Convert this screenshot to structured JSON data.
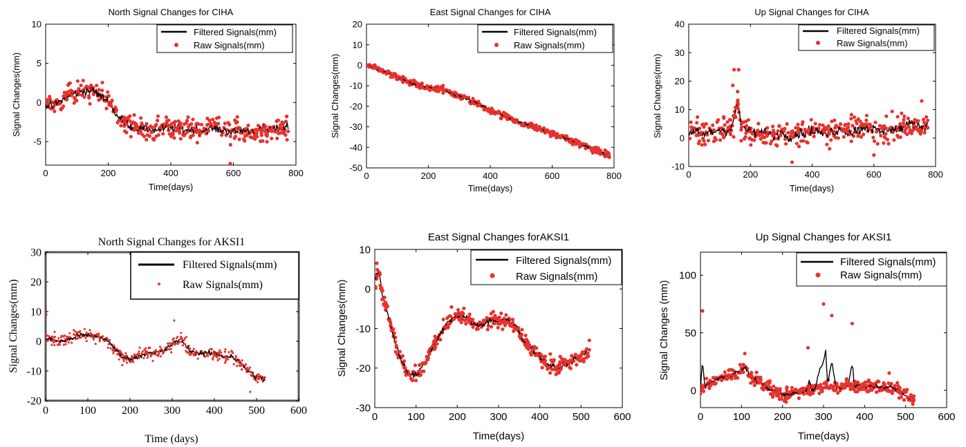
{
  "filtered_color": "#000000",
  "raw_color": "#e8322e",
  "chart_data": [
    {
      "type": "scatter",
      "title": "North Signal Changes for CIHA",
      "xlabel": "Time(days)",
      "ylabel": "Signal Changes(mm)",
      "xlim": [
        0,
        800
      ],
      "ylim": [
        -8,
        10
      ],
      "xticks": [
        0,
        200,
        400,
        600,
        800
      ],
      "yticks": [
        -5,
        0,
        5,
        10
      ],
      "legend_position": "top-right",
      "series": [
        {
          "name": "Filtered Signals(mm)",
          "kind": "line",
          "x": [
            0,
            25,
            50,
            75,
            100,
            125,
            150,
            175,
            200,
            225,
            250,
            275,
            300,
            325,
            350,
            375,
            400,
            425,
            450,
            475,
            500,
            525,
            550,
            575,
            600,
            625,
            650,
            675,
            700,
            725,
            750,
            775
          ],
          "y": [
            -0.3,
            -0.5,
            0.3,
            0.8,
            1.2,
            1.5,
            1.6,
            0.8,
            0.2,
            -1.5,
            -2.5,
            -3.0,
            -3.3,
            -3.4,
            -3.5,
            -3.4,
            -3.2,
            -3.3,
            -3.5,
            -3.4,
            -3.6,
            -3.3,
            -3.4,
            -3.6,
            -3.8,
            -3.5,
            -3.6,
            -3.7,
            -3.4,
            -3.6,
            -3.3,
            -3.0
          ]
        },
        {
          "name": "Raw Signals(mm)",
          "kind": "points",
          "x": [
            0,
            25,
            50,
            75,
            100,
            125,
            150,
            175,
            200,
            225,
            250,
            275,
            300,
            325,
            350,
            375,
            400,
            425,
            450,
            475,
            500,
            525,
            550,
            575,
            600,
            625,
            650,
            675,
            700,
            725,
            750,
            775
          ],
          "y": [
            -0.3,
            -0.5,
            0.3,
            0.8,
            1.2,
            1.5,
            1.6,
            0.8,
            0.2,
            -1.5,
            -2.5,
            -3.0,
            -3.3,
            -3.4,
            -3.5,
            -3.4,
            -3.2,
            -3.3,
            -3.5,
            -3.4,
            -3.6,
            -3.3,
            -3.4,
            -3.6,
            -3.8,
            -3.5,
            -3.6,
            -3.7,
            -3.4,
            -3.6,
            -3.3,
            -3.0
          ],
          "spread": 1.1,
          "outliers": [
            [
              590,
              -7.8
            ],
            [
              120,
              2.8
            ],
            [
              770,
              -1.8
            ]
          ]
        }
      ]
    },
    {
      "type": "scatter",
      "title": "East Signal Changes for CIHA",
      "xlabel": "Time(days)",
      "ylabel": "Signal Changes(mm)",
      "xlim": [
        0,
        800
      ],
      "ylim": [
        -50,
        20
      ],
      "xticks": [
        0,
        200,
        400,
        600,
        800
      ],
      "yticks": [
        -50,
        -40,
        -30,
        -20,
        -10,
        0,
        10,
        20
      ],
      "legend_position": "top-right",
      "series": [
        {
          "name": "Filtered Signals(mm)",
          "kind": "line",
          "x": [
            0,
            50,
            100,
            150,
            200,
            250,
            300,
            350,
            400,
            450,
            500,
            550,
            600,
            650,
            700,
            750,
            785
          ],
          "y": [
            0,
            -2.5,
            -6,
            -9,
            -10.5,
            -12,
            -15,
            -18,
            -22,
            -25,
            -28,
            -30.5,
            -33,
            -36,
            -39,
            -42,
            -44
          ]
        },
        {
          "name": "Raw Signals(mm)",
          "kind": "points",
          "x": [
            0,
            50,
            100,
            150,
            200,
            250,
            300,
            350,
            400,
            450,
            500,
            550,
            600,
            650,
            700,
            750,
            785
          ],
          "y": [
            0,
            -2.5,
            -6,
            -9,
            -10.5,
            -12,
            -15,
            -18,
            -22,
            -25,
            -28,
            -30.5,
            -33,
            -36,
            -39,
            -42,
            -44
          ],
          "spread": 1.3,
          "outliers": []
        }
      ]
    },
    {
      "type": "scatter",
      "title": "Up Signal Changes for CIHA",
      "xlabel": "Time(days)",
      "ylabel": "Signal Changes(mm)",
      "xlim": [
        0,
        800
      ],
      "ylim": [
        -10,
        40
      ],
      "xticks": [
        0,
        200,
        400,
        600,
        800
      ],
      "yticks": [
        -10,
        0,
        10,
        20,
        30,
        40
      ],
      "legend_position": "top-right",
      "series": [
        {
          "name": "Filtered Signals(mm)",
          "kind": "line",
          "x": [
            0,
            25,
            50,
            75,
            100,
            125,
            140,
            150,
            160,
            170,
            200,
            225,
            250,
            275,
            300,
            325,
            350,
            375,
            400,
            425,
            450,
            475,
            500,
            525,
            550,
            575,
            600,
            625,
            650,
            675,
            700,
            725,
            750,
            775
          ],
          "y": [
            1,
            2,
            1.5,
            2,
            3,
            2.5,
            4,
            9,
            12,
            4,
            2,
            1.5,
            2,
            1,
            2,
            0.5,
            1.5,
            2,
            3,
            2,
            1.5,
            2.5,
            3,
            2,
            3,
            4,
            3,
            2,
            3.5,
            3,
            4,
            5,
            4,
            5
          ]
        },
        {
          "name": "Raw Signals(mm)",
          "kind": "points",
          "x": [
            0,
            25,
            50,
            75,
            100,
            125,
            140,
            150,
            160,
            170,
            200,
            225,
            250,
            275,
            300,
            325,
            350,
            375,
            400,
            425,
            450,
            475,
            500,
            525,
            550,
            575,
            600,
            625,
            650,
            675,
            700,
            725,
            750,
            775
          ],
          "y": [
            1,
            2,
            1.5,
            2,
            3,
            2.5,
            4,
            9,
            12,
            4,
            2,
            1.5,
            2,
            1,
            2,
            0.5,
            1.5,
            2,
            3,
            2,
            1.5,
            2.5,
            3,
            2,
            3,
            4,
            3,
            2,
            3.5,
            3,
            4,
            5,
            4,
            5
          ],
          "spread": 3.5,
          "outliers": [
            [
              143,
              18.5
            ],
            [
              147,
              24
            ],
            [
              162,
              24
            ],
            [
              335,
              -8.5
            ],
            [
              755,
              13
            ],
            [
              600,
              -6
            ]
          ]
        }
      ]
    },
    {
      "type": "scatter",
      "title": "North Signal Changes for AKSI1",
      "xlabel": "Time (days)",
      "ylabel": "Signal Changes(mm)",
      "xlim": [
        0,
        600
      ],
      "ylim": [
        -20,
        30
      ],
      "xticks": [
        0,
        100,
        200,
        300,
        400,
        500,
        600
      ],
      "yticks": [
        -20,
        -10,
        0,
        10,
        20,
        30
      ],
      "legend_position": "top-right",
      "series": [
        {
          "name": "Filtered Signals(mm)",
          "kind": "line",
          "x": [
            0,
            20,
            40,
            60,
            80,
            100,
            120,
            140,
            160,
            180,
            200,
            220,
            240,
            260,
            280,
            300,
            320,
            340,
            360,
            380,
            400,
            420,
            440,
            460,
            480,
            500,
            520
          ],
          "y": [
            1,
            0.5,
            0,
            1,
            2,
            2,
            1.5,
            1,
            -2,
            -5,
            -6,
            -5,
            -4,
            -4,
            -3,
            -1,
            1,
            -3,
            -4,
            -4,
            -4,
            -5,
            -5,
            -7,
            -10,
            -12,
            -13
          ]
        },
        {
          "name": "Raw Signals(mm)",
          "kind": "points",
          "x": [
            0,
            20,
            40,
            60,
            80,
            100,
            120,
            140,
            160,
            180,
            200,
            220,
            240,
            260,
            280,
            300,
            320,
            340,
            360,
            380,
            400,
            420,
            440,
            460,
            480,
            500,
            520
          ],
          "y": [
            1,
            0.5,
            0,
            1,
            2,
            2,
            1.5,
            1,
            -2,
            -5,
            -6,
            -5,
            -4,
            -4,
            -3,
            -1,
            1,
            -3,
            -4,
            -4,
            -4,
            -5,
            -5,
            -7,
            -10,
            -12,
            -13
          ],
          "spread": 1.6,
          "outliers": [
            [
              2,
              9
            ],
            [
              305,
              7
            ],
            [
              485,
              -17
            ]
          ]
        }
      ]
    },
    {
      "type": "scatter",
      "title": "East Signal Changes forAKSI1",
      "xlabel": "Time(days)",
      "ylabel": "Signal Changes(mm)",
      "xlim": [
        0,
        600
      ],
      "ylim": [
        -30,
        10
      ],
      "xticks": [
        0,
        100,
        200,
        300,
        400,
        500,
        600
      ],
      "yticks": [
        -30,
        -20,
        -10,
        0,
        10
      ],
      "legend_position": "top-right",
      "series": [
        {
          "name": "Filtered Signals(mm)",
          "kind": "line",
          "x": [
            0,
            10,
            20,
            40,
            60,
            80,
            100,
            120,
            140,
            160,
            180,
            200,
            220,
            240,
            260,
            280,
            300,
            320,
            340,
            360,
            380,
            400,
            420,
            440,
            460,
            480,
            500,
            520
          ],
          "y": [
            3,
            4,
            -2,
            -10,
            -17,
            -21,
            -22,
            -19,
            -15,
            -11,
            -8,
            -7,
            -7,
            -9,
            -9,
            -8,
            -8,
            -8,
            -9,
            -13,
            -15,
            -17,
            -19,
            -20,
            -19,
            -18,
            -17,
            -16
          ]
        },
        {
          "name": "Raw Signals(mm)",
          "kind": "points",
          "x": [
            0,
            10,
            20,
            40,
            60,
            80,
            100,
            120,
            140,
            160,
            180,
            200,
            220,
            240,
            260,
            280,
            300,
            320,
            340,
            360,
            380,
            400,
            420,
            440,
            460,
            480,
            500,
            520
          ],
          "y": [
            3,
            4,
            -2,
            -10,
            -17,
            -21,
            -22,
            -19,
            -15,
            -11,
            -8,
            -7,
            -7,
            -9,
            -9,
            -8,
            -8,
            -8,
            -9,
            -13,
            -15,
            -17,
            -19,
            -20,
            -19,
            -18,
            -17,
            -16
          ],
          "spread": 1.5,
          "outliers": [
            [
              5,
              6.5
            ],
            [
              2,
              0.5
            ],
            [
              520,
              -13
            ]
          ]
        }
      ]
    },
    {
      "type": "scatter",
      "title": "Up Signal Changes for AKSI1",
      "xlabel": "Time(days)",
      "ylabel": "Signal Changes (mm)",
      "xlim": [
        0,
        600
      ],
      "ylim": [
        -15,
        120
      ],
      "xticks": [
        0,
        100,
        200,
        300,
        400,
        500,
        600
      ],
      "yticks": [
        0,
        50,
        100
      ],
      "legend_position": "top-right",
      "series": [
        {
          "name": "Filtered Signals(mm)",
          "kind": "line",
          "x": [
            0,
            5,
            10,
            20,
            40,
            60,
            80,
            100,
            110,
            120,
            140,
            160,
            180,
            200,
            220,
            240,
            260,
            265,
            270,
            280,
            290,
            300,
            305,
            310,
            320,
            330,
            340,
            360,
            370,
            375,
            380,
            400,
            420,
            440,
            460,
            480,
            500,
            520
          ],
          "y": [
            0,
            25,
            5,
            5,
            10,
            12,
            14,
            18,
            20,
            12,
            8,
            3,
            0,
            -5,
            -3,
            -2,
            0,
            10,
            0,
            2,
            18,
            25,
            35,
            5,
            25,
            3,
            3,
            5,
            22,
            5,
            4,
            3,
            4,
            3,
            3,
            0,
            -5,
            -8
          ]
        },
        {
          "name": "Raw Signals(mm)",
          "kind": "points",
          "x": [
            0,
            5,
            10,
            20,
            40,
            60,
            80,
            100,
            110,
            120,
            140,
            160,
            180,
            200,
            220,
            240,
            260,
            265,
            270,
            280,
            290,
            300,
            305,
            310,
            320,
            330,
            340,
            360,
            370,
            375,
            380,
            400,
            420,
            440,
            460,
            480,
            500,
            520
          ],
          "y": [
            0,
            3,
            5,
            5,
            10,
            12,
            14,
            18,
            20,
            12,
            8,
            3,
            0,
            -5,
            -3,
            -2,
            0,
            2,
            0,
            2,
            3,
            3,
            4,
            5,
            4,
            3,
            3,
            5,
            4,
            5,
            4,
            3,
            4,
            3,
            3,
            0,
            -5,
            -8
          ],
          "spread": 4,
          "outliers": [
            [
              5,
              69
            ],
            [
              300,
              75
            ],
            [
              320,
              65
            ],
            [
              370,
              58
            ],
            [
              262,
              37
            ],
            [
              108,
              32
            ],
            [
              460,
              15
            ]
          ]
        }
      ]
    }
  ]
}
